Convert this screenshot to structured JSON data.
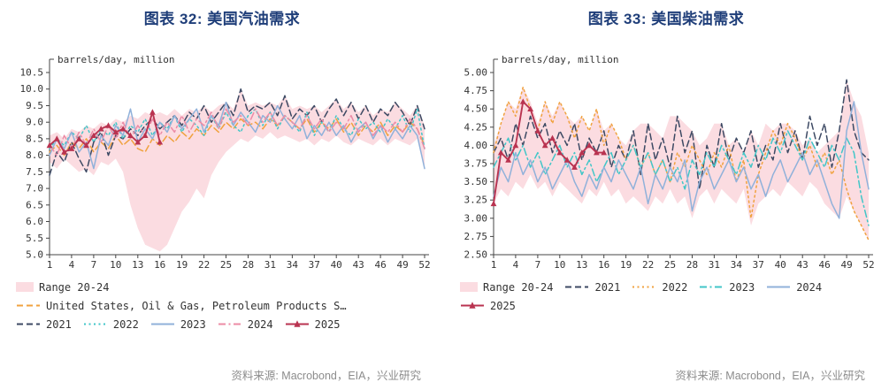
{
  "chart_data": [
    {
      "type": "line",
      "title": "图表 32: 美国汽油需求",
      "unit_label": "barrels/day, million",
      "source": "资料来源: Macrobond，EIA，兴业研究",
      "ylim": [
        5.0,
        10.5
      ],
      "ystep": 0.5,
      "ydecimals": 1,
      "x_axis": "week of year",
      "xticks": [
        1,
        4,
        7,
        10,
        13,
        16,
        19,
        22,
        25,
        28,
        31,
        34,
        37,
        40,
        43,
        46,
        49,
        52
      ],
      "grid": false,
      "legend_position": "bottom",
      "band": {
        "label": "Range 20-24",
        "color": "#fbdce1",
        "lower": [
          7.8,
          7.6,
          7.9,
          7.7,
          7.5,
          7.6,
          7.4,
          7.8,
          7.7,
          7.9,
          7.5,
          6.5,
          5.8,
          5.3,
          5.2,
          5.1,
          5.3,
          5.8,
          6.3,
          6.6,
          7.0,
          6.7,
          7.4,
          7.8,
          8.1,
          8.3,
          8.5,
          8.4,
          8.6,
          8.5,
          8.7,
          8.5,
          8.6,
          8.5,
          8.4,
          8.5,
          8.3,
          8.5,
          8.4,
          8.6,
          8.4,
          8.3,
          8.5,
          8.4,
          8.3,
          8.5,
          8.3,
          8.5,
          8.4,
          8.3,
          8.5,
          7.6
        ],
        "upper": [
          8.6,
          8.7,
          8.5,
          8.8,
          8.7,
          8.9,
          8.8,
          9.0,
          8.9,
          9.1,
          9.0,
          9.2,
          9.1,
          9.3,
          9.2,
          9.3,
          9.2,
          9.4,
          9.2,
          9.4,
          9.3,
          9.5,
          9.3,
          9.5,
          9.6,
          9.4,
          10.0,
          9.5,
          9.6,
          9.5,
          9.6,
          9.5,
          9.8,
          9.4,
          9.5,
          9.4,
          9.5,
          9.3,
          9.5,
          9.7,
          9.4,
          9.6,
          9.3,
          9.5,
          9.2,
          9.4,
          9.3,
          9.6,
          9.4,
          9.2,
          9.5,
          8.9
        ]
      },
      "series": [
        {
          "label": "United States, Oil & Gas, Petroleum Products S…",
          "color": "#f0a23f",
          "style": "dash",
          "values": [
            8.1,
            8.3,
            8.0,
            8.4,
            8.2,
            8.5,
            8.1,
            8.4,
            8.2,
            8.6,
            8.3,
            8.5,
            8.2,
            8.1,
            8.5,
            8.3,
            8.6,
            8.4,
            8.7,
            8.5,
            8.8,
            8.6,
            8.9,
            8.7,
            9.0,
            8.8,
            9.1,
            8.9,
            9.0,
            8.8,
            9.1,
            8.9,
            9.2,
            9.0,
            8.8,
            9.1,
            8.7,
            9.0,
            8.8,
            9.1,
            8.7,
            9.0,
            8.6,
            8.9,
            8.7,
            9.0,
            8.6,
            8.9,
            8.7,
            9.0,
            8.8,
            8.3
          ]
        },
        {
          "label": "2021",
          "color": "#3c4963",
          "style": "dash",
          "values": [
            7.4,
            8.1,
            7.8,
            8.4,
            7.9,
            7.5,
            8.4,
            8.7,
            8.0,
            8.6,
            8.5,
            8.8,
            8.6,
            8.9,
            9.1,
            8.8,
            9.0,
            9.2,
            8.9,
            9.3,
            9.1,
            9.5,
            9.0,
            9.3,
            9.6,
            9.2,
            10.0,
            9.3,
            9.5,
            9.4,
            9.6,
            9.2,
            9.8,
            9.1,
            9.4,
            9.2,
            9.5,
            9.0,
            9.4,
            9.7,
            9.2,
            9.6,
            9.1,
            9.5,
            9.0,
            9.4,
            9.2,
            9.6,
            9.3,
            8.9,
            9.5,
            8.8
          ]
        },
        {
          "label": "2022",
          "color": "#41c6c8",
          "style": "dot",
          "values": [
            8.2,
            8.5,
            8.3,
            8.7,
            8.5,
            8.9,
            8.4,
            8.8,
            8.6,
            9.0,
            8.5,
            8.9,
            8.7,
            9.1,
            8.6,
            9.0,
            8.8,
            9.2,
            8.7,
            9.1,
            8.9,
            8.6,
            9.2,
            8.8,
            9.3,
            8.9,
            8.7,
            9.2,
            9.4,
            8.9,
            9.3,
            8.8,
            9.2,
            9.0,
            8.7,
            9.3,
            8.6,
            9.0,
            8.7,
            9.2,
            8.8,
            8.6,
            9.1,
            8.8,
            9.0,
            8.7,
            9.1,
            8.8,
            9.2,
            8.7,
            9.4,
            8.2
          ]
        },
        {
          "label": "2023",
          "color": "#90b1da",
          "style": "solid",
          "values": [
            8.0,
            8.5,
            8.2,
            8.7,
            8.1,
            8.4,
            7.6,
            8.6,
            8.3,
            8.9,
            8.6,
            9.4,
            8.4,
            8.8,
            8.5,
            9.0,
            8.7,
            9.2,
            8.8,
            9.1,
            9.4,
            8.7,
            9.2,
            8.9,
            9.6,
            8.9,
            9.3,
            9.0,
            8.7,
            9.2,
            9.0,
            9.5,
            9.1,
            8.8,
            9.2,
            8.5,
            8.9,
            8.6,
            9.0,
            8.6,
            8.9,
            8.4,
            8.8,
            9.0,
            8.5,
            8.9,
            8.4,
            8.8,
            8.5,
            8.9,
            8.6,
            7.6
          ]
        },
        {
          "label": "2024",
          "color": "#ec8ba6",
          "style": "dashdot",
          "values": [
            8.3,
            8.0,
            8.6,
            8.2,
            8.7,
            8.3,
            8.8,
            8.4,
            8.9,
            8.5,
            9.0,
            8.5,
            8.9,
            8.6,
            9.1,
            8.6,
            9.0,
            8.7,
            9.2,
            8.7,
            9.1,
            8.9,
            9.3,
            8.8,
            9.4,
            9.0,
            9.2,
            8.9,
            9.4,
            9.0,
            9.3,
            8.9,
            9.2,
            9.0,
            8.8,
            9.2,
            8.8,
            9.1,
            8.7,
            9.0,
            8.8,
            9.2,
            8.7,
            9.0,
            8.6,
            8.9,
            8.7,
            9.0,
            8.7,
            9.1,
            8.8,
            8.2
          ]
        },
        {
          "label": "2025",
          "color": "#b93350",
          "style": "solid",
          "marker": "triangle",
          "values": [
            8.3,
            8.5,
            8.1,
            8.2,
            8.5,
            8.3,
            8.6,
            8.8,
            8.9,
            8.7,
            8.8,
            8.6,
            8.4,
            8.6,
            9.3,
            8.4
          ]
        }
      ],
      "legend_rows": [
        [
          "band"
        ],
        [
          0
        ],
        [
          1,
          2,
          3,
          4,
          5
        ]
      ]
    },
    {
      "type": "line",
      "title": "图表 33: 美国柴油需求",
      "unit_label": "barrels/day, million",
      "source": "资料来源: Macrobond，EIA，兴业研究",
      "ylim": [
        2.5,
        5.0
      ],
      "ystep": 0.25,
      "ydecimals": 2,
      "x_axis": "week of year",
      "xticks": [
        1,
        4,
        7,
        10,
        13,
        16,
        19,
        22,
        25,
        28,
        31,
        34,
        37,
        40,
        43,
        46,
        49,
        52
      ],
      "grid": false,
      "legend_position": "bottom",
      "band": {
        "label": "Range 20-24",
        "color": "#fbdce1",
        "lower": [
          3.2,
          3.4,
          3.3,
          3.5,
          3.4,
          3.6,
          3.4,
          3.5,
          3.3,
          3.5,
          3.4,
          3.3,
          3.2,
          3.4,
          3.3,
          3.5,
          3.3,
          3.4,
          3.2,
          3.3,
          3.2,
          3.1,
          3.3,
          3.2,
          3.4,
          3.2,
          3.3,
          3.0,
          3.3,
          3.4,
          3.2,
          3.4,
          3.3,
          3.2,
          3.4,
          2.9,
          3.2,
          3.3,
          3.4,
          3.3,
          3.5,
          3.4,
          3.3,
          3.5,
          3.4,
          3.2,
          3.1,
          3.0,
          3.3,
          3.1,
          2.9,
          2.7
        ],
        "upper": [
          4.0,
          4.3,
          4.6,
          4.5,
          4.8,
          4.6,
          4.3,
          4.6,
          4.4,
          4.6,
          4.4,
          4.3,
          4.4,
          4.2,
          4.5,
          4.2,
          4.3,
          4.1,
          4.0,
          4.2,
          4.3,
          4.3,
          4.2,
          4.1,
          4.4,
          4.4,
          4.3,
          4.2,
          4.0,
          4.1,
          4.3,
          4.3,
          4.0,
          4.1,
          3.9,
          4.2,
          4.0,
          4.3,
          4.2,
          4.3,
          4.3,
          4.2,
          4.0,
          4.1,
          3.9,
          4.0,
          4.1,
          4.2,
          4.9,
          4.6,
          4.4,
          3.9
        ]
      },
      "series": [
        {
          "label": "2021",
          "color": "#3c4963",
          "style": "dash",
          "values": [
            3.9,
            4.1,
            3.8,
            4.3,
            4.0,
            4.4,
            4.1,
            4.3,
            3.9,
            4.2,
            4.0,
            4.3,
            3.8,
            4.1,
            3.9,
            4.2,
            3.7,
            4.0,
            3.8,
            4.2,
            3.6,
            4.3,
            3.8,
            4.1,
            3.7,
            4.4,
            3.9,
            4.2,
            3.4,
            4.0,
            3.7,
            4.3,
            3.8,
            4.1,
            3.9,
            4.2,
            3.7,
            4.0,
            3.8,
            4.3,
            3.9,
            4.2,
            3.8,
            4.4,
            4.0,
            4.3,
            3.7,
            4.2,
            4.9,
            4.2,
            3.9,
            3.8
          ]
        },
        {
          "label": "2022",
          "color": "#f0a23f",
          "style": "dot",
          "values": [
            3.9,
            4.3,
            4.6,
            4.4,
            4.8,
            4.5,
            4.2,
            4.6,
            4.3,
            4.6,
            4.4,
            4.1,
            4.4,
            4.2,
            4.5,
            4.0,
            4.3,
            4.1,
            3.8,
            4.0,
            3.7,
            3.9,
            3.6,
            3.8,
            3.5,
            3.9,
            3.7,
            4.0,
            3.8,
            3.6,
            3.9,
            3.7,
            4.0,
            3.5,
            3.8,
            3.0,
            3.6,
            3.9,
            4.2,
            4.0,
            4.3,
            4.1,
            3.8,
            4.0,
            3.7,
            3.9,
            3.6,
            3.8,
            3.4,
            3.1,
            2.9,
            2.7
          ]
        },
        {
          "label": "2023",
          "color": "#41c6c8",
          "style": "dashdot",
          "values": [
            3.7,
            3.9,
            4.1,
            3.8,
            4.0,
            3.7,
            3.9,
            3.6,
            3.8,
            4.0,
            3.7,
            3.9,
            3.6,
            3.8,
            3.5,
            3.7,
            3.9,
            3.6,
            3.8,
            4.0,
            3.7,
            3.9,
            3.6,
            3.8,
            3.5,
            3.7,
            3.4,
            3.8,
            3.6,
            3.9,
            3.7,
            4.0,
            3.8,
            3.6,
            3.9,
            3.7,
            4.0,
            3.8,
            4.1,
            3.9,
            4.2,
            4.0,
            3.8,
            4.1,
            3.9,
            3.7,
            4.0,
            3.8,
            4.1,
            3.9,
            3.3,
            2.9
          ]
        },
        {
          "label": "2024",
          "color": "#90b1da",
          "style": "solid",
          "values": [
            3.3,
            3.7,
            3.5,
            3.9,
            3.6,
            3.8,
            3.5,
            3.7,
            3.4,
            3.6,
            3.8,
            3.5,
            3.3,
            3.6,
            3.4,
            3.7,
            3.5,
            3.8,
            3.6,
            3.4,
            3.7,
            3.2,
            3.6,
            3.4,
            3.7,
            3.5,
            3.8,
            3.1,
            3.5,
            3.7,
            3.4,
            3.6,
            3.8,
            3.5,
            3.7,
            3.4,
            3.6,
            3.3,
            3.6,
            3.8,
            3.5,
            3.7,
            3.9,
            3.6,
            3.8,
            3.5,
            3.2,
            3.0,
            4.2,
            4.6,
            3.9,
            3.4
          ]
        },
        {
          "label": "2025",
          "color": "#b93350",
          "style": "solid",
          "marker": "triangle",
          "values": [
            3.2,
            3.9,
            3.8,
            4.0,
            4.6,
            4.5,
            4.2,
            4.0,
            4.1,
            3.9,
            3.8,
            3.7,
            3.9,
            4.0,
            3.9,
            3.9
          ]
        }
      ],
      "legend_rows": [
        [
          "band",
          0,
          1,
          2,
          3
        ],
        [
          4
        ]
      ]
    }
  ]
}
